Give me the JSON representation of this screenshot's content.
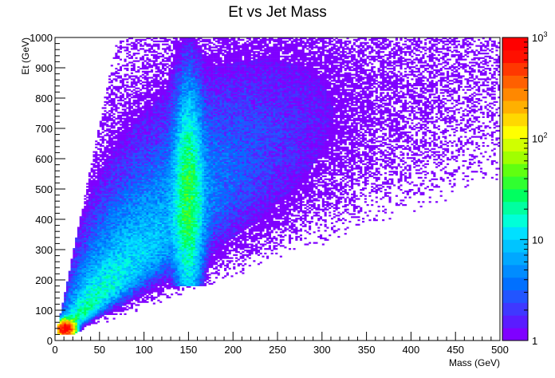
{
  "chart_data": {
    "type": "heatmap",
    "title": "Et vs Jet Mass",
    "xlabel": "Mass (GeV)",
    "ylabel": "Et (GeV)",
    "xlim": [
      0,
      500
    ],
    "ylim": [
      0,
      1000
    ],
    "x_ticks": [
      "0",
      "50",
      "100",
      "150",
      "200",
      "250",
      "300",
      "350",
      "400",
      "450",
      "500"
    ],
    "y_ticks": [
      "0",
      "100",
      "200",
      "300",
      "400",
      "500",
      "600",
      "700",
      "800",
      "900",
      "1000"
    ],
    "bins": {
      "x": 200,
      "y": 200
    },
    "z_scale": "log",
    "zlim": [
      1,
      1000
    ],
    "colorbar_labels": [
      {
        "base": "1",
        "exp": "",
        "value": 1
      },
      {
        "base": "10",
        "exp": "",
        "value": 10
      },
      {
        "base": "10",
        "exp": "2",
        "value": 100
      },
      {
        "base": "10",
        "exp": "3",
        "value": 1000
      }
    ],
    "palette": [
      "#7f00ff",
      "#5a1cff",
      "#3f38ff",
      "#2255ff",
      "#0070ff",
      "#008cff",
      "#00a8ff",
      "#00c4ff",
      "#00e0ff",
      "#00ffd8",
      "#00ffa0",
      "#00ff60",
      "#30ff30",
      "#60ff10",
      "#a0ff00",
      "#d0ff00",
      "#ffff00",
      "#ffd800",
      "#ffb000",
      "#ff8800",
      "#ff6000",
      "#ff3800",
      "#ff1000",
      "#ff0000"
    ],
    "description_features": [
      {
        "name": "low-mass peak",
        "mass": 12,
        "et": 40,
        "counts": 1000
      },
      {
        "name": "top-mass ridge",
        "mass": 150,
        "et_range": [
          250,
          800
        ],
        "counts": 30
      },
      {
        "name": "broad QCD band",
        "mass_over_et": [
          0.1,
          0.6
        ],
        "counts": 10
      }
    ]
  }
}
